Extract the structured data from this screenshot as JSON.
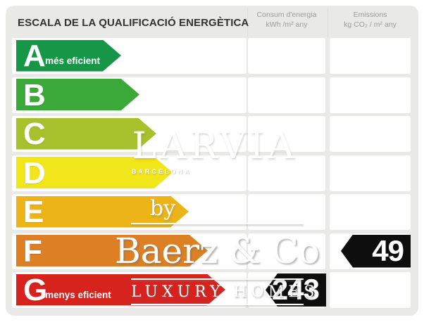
{
  "header": {
    "title": "ESCALA DE LA QUALIFICACIÓ ENERGÈTICA",
    "consum_col": {
      "line1": "Consum d'energia",
      "line2": "kWh /m² any"
    },
    "emissions_col": {
      "line1": "Emissions",
      "line2": "kg CO₂ / m² any"
    }
  },
  "scale": {
    "badge_color": "#0e0e0e",
    "rows": [
      {
        "letter": "A",
        "label": "més eficient",
        "color": "#179647",
        "arrow_end": 172,
        "consum": "",
        "emissions": ""
      },
      {
        "letter": "B",
        "label": "",
        "color": "#3ba93a",
        "arrow_end": 198,
        "consum": "",
        "emissions": ""
      },
      {
        "letter": "C",
        "label": "",
        "color": "#a6c12b",
        "arrow_end": 222,
        "consum": "",
        "emissions": ""
      },
      {
        "letter": "D",
        "label": "",
        "color": "#f0e619",
        "arrow_end": 245,
        "consum": "",
        "emissions": ""
      },
      {
        "letter": "E",
        "label": "",
        "color": "#ecb419",
        "arrow_end": 268,
        "consum": "",
        "emissions": ""
      },
      {
        "letter": "F",
        "label": "",
        "color": "#dd8024",
        "arrow_end": 295,
        "consum": "",
        "emissions": "49"
      },
      {
        "letter": "G",
        "label": "menys eficient",
        "color": "#d6231e",
        "arrow_end": 320,
        "consum": "243",
        "emissions": ""
      }
    ]
  },
  "watermark": {
    "wordmark": "LARVIA",
    "city": "BARCELONA",
    "by": "by",
    "brand": "Baerz & Co",
    "tagline": "LUXURY HOMES"
  },
  "chart_data": {
    "type": "bar",
    "title": "ESCALA DE LA QUALIFICACIÓ ENERGÈTICA",
    "categories": [
      "A",
      "B",
      "C",
      "D",
      "E",
      "F",
      "G"
    ],
    "series": [
      {
        "name": "Consum d'energia (kWh/m² any)",
        "values": [
          null,
          null,
          null,
          null,
          null,
          null,
          243
        ]
      },
      {
        "name": "Emissions (kg CO₂/m² any)",
        "values": [
          null,
          null,
          null,
          null,
          null,
          49,
          null
        ]
      }
    ],
    "annotations": [
      "A = més eficient",
      "G = menys eficient"
    ],
    "legend_position": "top",
    "grid": false
  }
}
